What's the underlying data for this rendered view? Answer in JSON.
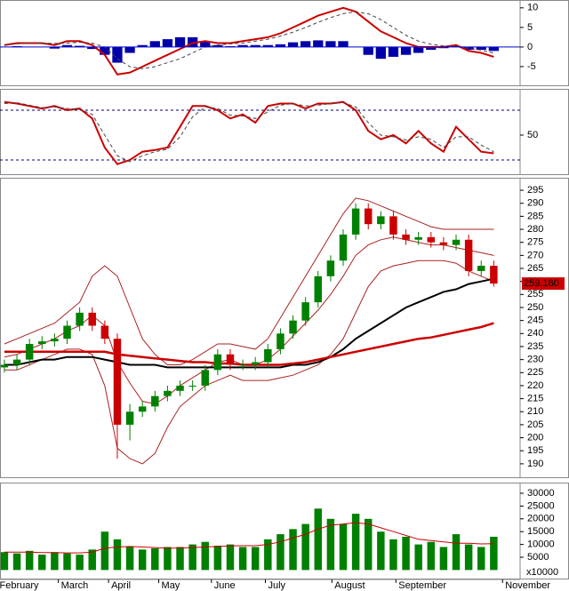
{
  "chart_data": [
    {
      "type": "macd",
      "ylim": [
        -10,
        12
      ],
      "yticks": [
        -5,
        0,
        5,
        10
      ],
      "zero_line_color": "#0000cc",
      "histogram": {
        "color": "#0000aa",
        "values": [
          0,
          0.2,
          0,
          0,
          -0.4,
          0.5,
          0.3,
          -0.5,
          -2,
          -4,
          -1.5,
          0.5,
          1.5,
          2,
          2.5,
          2.5,
          1.5,
          0.5,
          0.2,
          0.5,
          0.5,
          0.5,
          0.7,
          1.2,
          1.5,
          1.7,
          1.5,
          1.5,
          0,
          -2,
          -3,
          -2.5,
          -2,
          -1.5,
          -0.7,
          -0.3,
          0.2,
          -0.7,
          -0.7,
          -1
        ]
      },
      "series": [
        {
          "color": "#cc0000",
          "dash": false,
          "values": [
            0.5,
            1,
            1,
            1,
            0.5,
            1.5,
            1.5,
            0.5,
            -2,
            -7,
            -6.5,
            -5,
            -3.5,
            -2,
            -0.5,
            1,
            1.5,
            1,
            1,
            1.5,
            2,
            2.5,
            3.5,
            5,
            6.5,
            8,
            9,
            10,
            9,
            6.5,
            4,
            2.5,
            1,
            0,
            0,
            0,
            0.5,
            -1,
            -1.5,
            -2.5
          ]
        },
        {
          "color": "#444444",
          "dash": true,
          "values": [
            0.5,
            0.8,
            1,
            1,
            0.9,
            1,
            1.2,
            1,
            0,
            -3,
            -5,
            -5.5,
            -5,
            -4,
            -3,
            -1.5,
            0,
            0.5,
            0.8,
            1,
            1.5,
            2,
            2.8,
            3.8,
            5,
            6.3,
            7.5,
            8.5,
            9,
            8.5,
            7,
            5,
            3,
            1.5,
            0.7,
            0.3,
            0.3,
            -0.3,
            -0.8,
            -1.5
          ]
        }
      ]
    },
    {
      "type": "line",
      "ylim": [
        1.8,
        105.7
      ],
      "yticks": [
        50
      ],
      "hlines": [
        20,
        80
      ],
      "hline_color": "#000080",
      "series": [
        {
          "color": "#cc0000",
          "dash": false,
          "values": [
            90,
            88,
            85,
            82,
            85,
            80,
            82,
            70,
            35,
            15,
            20,
            30,
            32,
            35,
            60,
            85,
            85,
            80,
            70,
            75,
            65,
            85,
            88,
            88,
            82,
            88,
            88,
            90,
            80,
            55,
            45,
            50,
            40,
            55,
            40,
            30,
            60,
            45,
            30,
            28
          ]
        },
        {
          "color": "#444444",
          "dash": true,
          "values": [
            88,
            89,
            86,
            83,
            84,
            82,
            81,
            75,
            50,
            25,
            18,
            25,
            30,
            33,
            48,
            72,
            84,
            82,
            74,
            73,
            70,
            78,
            86,
            88,
            85,
            86,
            88,
            89,
            84,
            65,
            50,
            48,
            44,
            48,
            45,
            35,
            48,
            48,
            38,
            30
          ]
        }
      ]
    },
    {
      "type": "candlestick",
      "ylim": [
        184.5,
        299.8
      ],
      "yticks": [
        190,
        195,
        200,
        205,
        210,
        215,
        220,
        225,
        230,
        235,
        240,
        245,
        250,
        255,
        260,
        265,
        270,
        275,
        280,
        285,
        290,
        295
      ],
      "up_color": "#008000",
      "down_color": "#cc0000",
      "open": [
        227,
        228,
        230,
        236,
        237,
        238,
        243,
        248,
        243,
        238,
        205,
        210,
        212,
        216,
        218,
        220,
        220,
        226,
        232,
        228,
        228,
        229,
        234,
        240,
        245,
        252,
        262,
        268,
        278,
        288,
        282,
        285,
        278,
        276,
        277,
        275,
        274,
        276,
        264,
        266
      ],
      "high": [
        230,
        232,
        238,
        239,
        240,
        245,
        250,
        250,
        245,
        240,
        213,
        214,
        218,
        220,
        222,
        222,
        228,
        234,
        234,
        230,
        231,
        236,
        242,
        247,
        254,
        264,
        270,
        280,
        290,
        290,
        287,
        287,
        280,
        279,
        279,
        277,
        278,
        278,
        268,
        268
      ],
      "low": [
        225,
        226,
        228,
        234,
        235,
        236,
        241,
        241,
        236,
        192,
        199,
        208,
        210,
        214,
        216,
        218,
        218,
        224,
        226,
        226,
        226,
        227,
        232,
        238,
        243,
        250,
        260,
        266,
        276,
        280,
        280,
        276,
        274,
        274,
        273,
        272,
        272,
        262,
        262,
        258
      ],
      "close": [
        228,
        230,
        236,
        237,
        238,
        243,
        248,
        243,
        238,
        205,
        210,
        212,
        216,
        218,
        220,
        220,
        226,
        232,
        228,
        228,
        229,
        234,
        240,
        245,
        252,
        262,
        268,
        278,
        288,
        282,
        285,
        278,
        276,
        277,
        275,
        274,
        276,
        264,
        266,
        259.18
      ],
      "last_price": {
        "value": 259.18,
        "label": "259.180"
      },
      "series": [
        {
          "color": "#aa2222",
          "width": 1,
          "values": [
            236,
            238,
            240,
            242,
            244,
            248,
            252,
            262,
            266,
            262,
            250,
            238,
            232,
            228,
            228,
            230,
            233,
            236,
            236,
            235,
            234,
            238,
            246,
            254,
            262,
            270,
            278,
            286,
            292,
            291,
            289,
            287,
            285,
            283,
            281,
            280,
            280,
            280,
            280,
            280
          ]
        },
        {
          "color": "#aa2222",
          "width": 1,
          "values": [
            226,
            226,
            228,
            230,
            232,
            234,
            234,
            232,
            220,
            196,
            192,
            190,
            194,
            204,
            212,
            216,
            220,
            222,
            224,
            222,
            222,
            222,
            223,
            224,
            226,
            228,
            232,
            238,
            248,
            258,
            264,
            266,
            267,
            268,
            268,
            268,
            267,
            264,
            262,
            260
          ]
        },
        {
          "color": "#aa2222",
          "width": 1,
          "values": [
            231,
            232,
            234,
            236,
            238,
            241,
            243,
            247,
            243,
            229,
            221,
            214,
            213,
            216,
            220,
            223,
            226,
            229,
            230,
            228,
            228,
            230,
            234,
            239,
            244,
            249,
            255,
            262,
            270,
            274,
            276,
            277,
            276,
            275,
            274,
            274,
            273,
            272,
            271,
            270
          ]
        },
        {
          "color": "#000000",
          "width": 2,
          "values": [
            228,
            228,
            229,
            230,
            230,
            231,
            231,
            231,
            230,
            229,
            228,
            228,
            228,
            227,
            227,
            227,
            227,
            227,
            227,
            227,
            227,
            227,
            227,
            228,
            228,
            229,
            231,
            234,
            238,
            241,
            244,
            247,
            250,
            252,
            254,
            256,
            257,
            259,
            260,
            261
          ]
        },
        {
          "color": "#cc0000",
          "width": 2.5,
          "values": [
            233,
            233,
            233,
            233,
            233,
            233,
            233,
            233,
            233,
            232,
            231.5,
            231,
            230.5,
            230,
            229.5,
            229,
            229,
            228.5,
            228.5,
            228,
            228,
            228,
            228,
            228.5,
            229,
            230,
            231,
            232,
            233,
            234,
            235,
            236,
            237,
            238,
            238.5,
            239.5,
            240.5,
            241.5,
            242.5,
            244
          ]
        }
      ]
    },
    {
      "type": "bar",
      "ylim": [
        -3680,
        34170
      ],
      "yticks": [
        5000,
        10000,
        15000,
        20000,
        25000,
        30000
      ],
      "unit_label": "x10000",
      "color": "#008000",
      "values": [
        7000,
        6500,
        7500,
        6000,
        7000,
        6500,
        6000,
        8000,
        15000,
        12000,
        9000,
        8000,
        8500,
        9000,
        9000,
        10000,
        11000,
        9500,
        10000,
        9000,
        9000,
        12000,
        14000,
        16000,
        18000,
        24000,
        20000,
        18000,
        22000,
        20000,
        15000,
        12000,
        13000,
        10000,
        11000,
        9000,
        14000,
        10000,
        9000,
        13000
      ],
      "series": [
        {
          "color": "#cc0000",
          "values": [
            7000,
            7000,
            7000,
            6800,
            6800,
            6700,
            6700,
            7000,
            8500,
            9000,
            9200,
            9000,
            8800,
            8500,
            8600,
            8800,
            9000,
            9200,
            9400,
            9500,
            9500,
            10000,
            11000,
            12500,
            14000,
            16000,
            17500,
            18000,
            18500,
            18000,
            16500,
            15000,
            13500,
            12000,
            11500,
            11000,
            10500,
            10500,
            10200,
            10300
          ]
        }
      ],
      "xlim": [
        -0.35,
        41.1
      ],
      "xticks": [
        {
          "value": -0.6,
          "label": "February"
        },
        {
          "value": 4.3,
          "label": "March"
        },
        {
          "value": 8.3,
          "label": "April"
        },
        {
          "value": 12.3,
          "label": "May"
        },
        {
          "value": 16.5,
          "label": "June"
        },
        {
          "value": 20.8,
          "label": "July"
        },
        {
          "value": 26.1,
          "label": "August"
        },
        {
          "value": 31.2,
          "label": "September"
        },
        {
          "value": 39.7,
          "label": "November"
        }
      ]
    }
  ]
}
